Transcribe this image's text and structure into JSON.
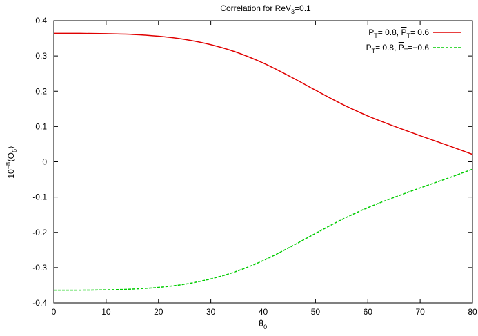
{
  "chart_data": {
    "type": "line",
    "title": {
      "main": "Correlation for ReV",
      "sub": "3",
      "suffix": "=0.1"
    },
    "xlabel": {
      "main": "θ",
      "sub": "0"
    },
    "ylabel": {
      "prefix": "10",
      "exp": "−8",
      "open": "⟨O",
      "sub": "6",
      "close": "⟩"
    },
    "xlim": [
      0,
      80
    ],
    "ylim": [
      -0.4,
      0.4
    ],
    "x_ticks": [
      0,
      10,
      20,
      30,
      40,
      50,
      60,
      70,
      80
    ],
    "x_tick_labels": [
      "0",
      "10",
      "20",
      "30",
      "40",
      "50",
      "60",
      "70",
      "80"
    ],
    "y_ticks": [
      -0.4,
      -0.3,
      -0.2,
      -0.1,
      0,
      0.1,
      0.2,
      0.3,
      0.4
    ],
    "y_tick_labels": [
      "-0.4",
      "-0.3",
      "-0.2",
      "-0.1",
      "0",
      "0.1",
      "0.2",
      "0.3",
      "0.4"
    ],
    "grid": false,
    "legend_position": "top-right",
    "x": [
      0,
      5,
      10,
      15,
      20,
      25,
      30,
      35,
      40,
      45,
      50,
      55,
      60,
      65,
      70,
      75,
      80
    ],
    "series": [
      {
        "legend": {
          "a": "P",
          "a_sub": "T",
          "b": "= 0.8, ",
          "c_bar": "P",
          "c_sub": "T",
          "d": "=  0.6"
        },
        "color": "#e00000",
        "dash": "solid",
        "values": [
          0.364,
          0.364,
          0.363,
          0.361,
          0.356,
          0.347,
          0.332,
          0.31,
          0.28,
          0.243,
          0.203,
          0.164,
          0.13,
          0.101,
          0.074,
          0.048,
          0.021
        ]
      },
      {
        "legend": {
          "a": "P",
          "a_sub": "T",
          "b": "= 0.8, ",
          "c_bar": "P",
          "c_sub": "T",
          "d": "=−0.6"
        },
        "color": "#00cc00",
        "dash": "dashed",
        "values": [
          -0.364,
          -0.364,
          -0.363,
          -0.361,
          -0.356,
          -0.347,
          -0.332,
          -0.31,
          -0.28,
          -0.243,
          -0.203,
          -0.164,
          -0.13,
          -0.101,
          -0.074,
          -0.048,
          -0.021
        ]
      }
    ]
  }
}
